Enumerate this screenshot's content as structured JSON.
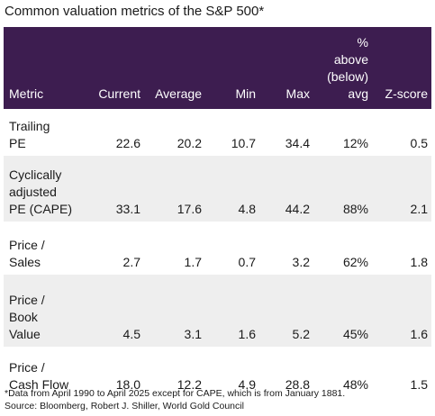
{
  "title": "Common valuation metrics of the S&P 500*",
  "table": {
    "headers": {
      "metric": "Metric",
      "current": "Current",
      "average": "Average",
      "min": "Min",
      "max": "Max",
      "pct_line1": "%",
      "pct_line2": "above",
      "pct_line3": "(below)",
      "pct_line4": "avg",
      "zscore": "Z-score"
    },
    "rows": [
      {
        "metric_lines": [
          "Trailing",
          "PE"
        ],
        "current": "22.6",
        "average": "20.2",
        "min": "10.7",
        "max": "34.4",
        "pct": "12%",
        "zscore": "0.5"
      },
      {
        "metric_lines": [
          "Cyclically",
          "adjusted",
          "PE (CAPE)"
        ],
        "current": "33.1",
        "average": "17.6",
        "min": "4.8",
        "max": "44.2",
        "pct": "88%",
        "zscore": "2.1"
      },
      {
        "metric_lines": [
          "Price /",
          "Sales"
        ],
        "current": "2.7",
        "average": "1.7",
        "min": "0.7",
        "max": "3.2",
        "pct": "62%",
        "zscore": "1.8"
      },
      {
        "metric_lines": [
          "Price /",
          "Book",
          "Value"
        ],
        "current": "4.5",
        "average": "3.1",
        "min": "1.6",
        "max": "5.2",
        "pct": "45%",
        "zscore": "1.6"
      },
      {
        "metric_lines": [
          "Price /",
          "Cash Flow"
        ],
        "current": "18.0",
        "average": "12.2",
        "min": "4.9",
        "max": "28.8",
        "pct": "48%",
        "zscore": "1.5"
      }
    ]
  },
  "footnote": {
    "line1": "*Data from April 1990 to April 2025 except for CAPE, which is from January 1881.",
    "line2": "Source: Bloomberg, Robert J. Shiller, World Gold Council"
  },
  "colors": {
    "header_bg": "#3d1d50",
    "stripe_bg": "#eeeeee"
  }
}
